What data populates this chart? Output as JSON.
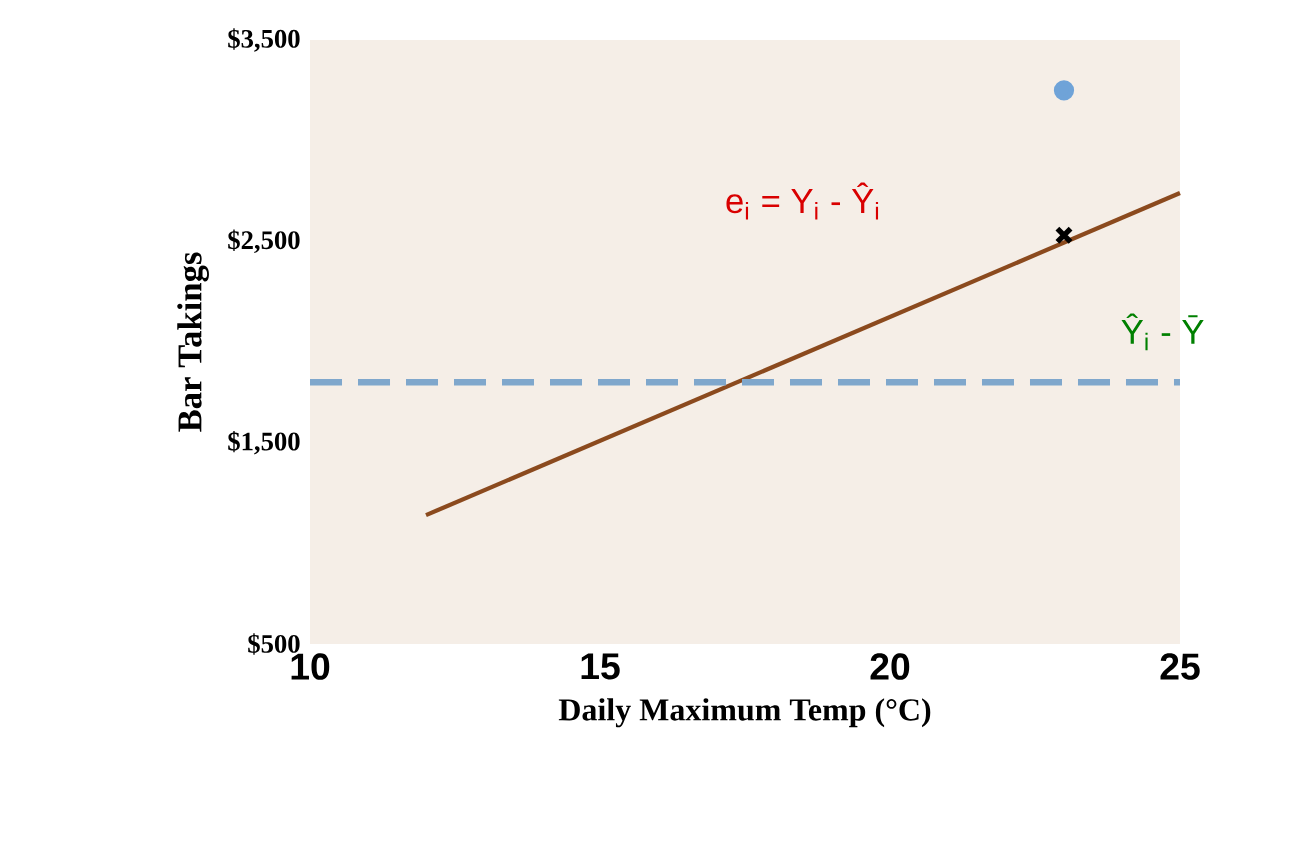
{
  "chart_data": {
    "type": "line",
    "xlabel": "Daily Maximum Temp (°C)",
    "ylabel": "Bar Takings",
    "xlim": [
      10,
      25
    ],
    "xticks": [
      10,
      15,
      20,
      25
    ],
    "ylim": [
      500,
      3500
    ],
    "yticks": [
      {
        "value": 500,
        "label": "$500"
      },
      {
        "value": 1500,
        "label": "$1,500"
      },
      {
        "value": 2500,
        "label": "$2,500"
      },
      {
        "value": 3500,
        "label": "$3,500"
      }
    ],
    "series": [
      {
        "color": "#8b4a1e",
        "x": [
          12,
          25
        ],
        "values": [
          1140,
          2740
        ]
      },
      {
        "type": "scatter",
        "marker": "circle",
        "color": "#6fa3d8",
        "x": [
          23
        ],
        "values": [
          3250
        ]
      },
      {
        "type": "scatter",
        "marker": "cross",
        "color": "#000000",
        "x": [
          23
        ],
        "values": [
          2530
        ]
      }
    ],
    "ref_lines": [
      {
        "axis": "y",
        "value": 1800,
        "color": "#7fa7cc",
        "line_style": "dashed"
      }
    ],
    "annotations": [
      "e$_{i}$ = Y$_{i}$ - Ŷ$_{i}$",
      "Ŷ$_{i}$ - Ȳ"
    ],
    "grid": false
  }
}
